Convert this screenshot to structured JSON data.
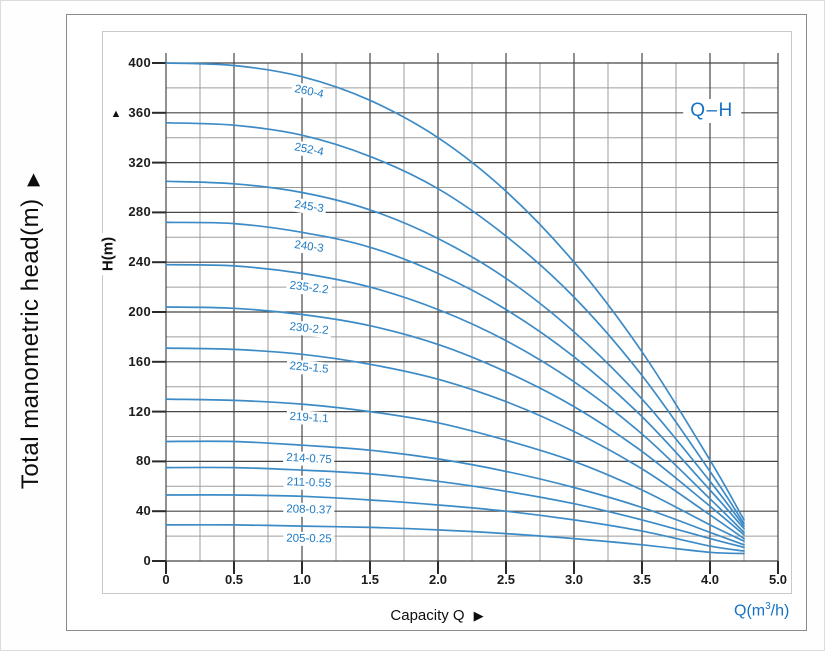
{
  "labels": {
    "title": "Q–H",
    "capacity": "Capacity Q",
    "capacity_arrow": "▶",
    "y_inner": "H(m)",
    "y_outer": "Total manometric head(m)",
    "y_outer_arrow": "▶",
    "y_axis_marker": "▲",
    "unit_prefix": "Q(m",
    "unit_sup": "3",
    "unit_suffix": "/h)"
  },
  "colors": {
    "curve": "#3d8bc6",
    "curve_label": "#1e7ac4",
    "title_blue": "#1672c2",
    "grid_major": "#464646",
    "grid_minor": "#9d9d9d",
    "tick": "#2a2a2a",
    "box_border": "#8a8a8a",
    "panel_border": "#c9c9c9"
  },
  "chart_data": {
    "type": "line",
    "title": "Q–H",
    "xlabel": "Capacity Q",
    "x_unit": "Q(m3/h)",
    "ylabel": "H(m)",
    "ylabel_outer": "Total manometric head(m)",
    "x_tick_labels": [
      "0",
      "0.5",
      "1.0",
      "1.5",
      "2.0",
      "2.5",
      "3.0",
      "3.5",
      "4.0",
      "5.0"
    ],
    "y_tick_labels": [
      "400",
      "360",
      "320",
      "280",
      "240",
      "200",
      "160",
      "120",
      "80",
      "40",
      "0"
    ],
    "ylim": [
      0,
      400
    ],
    "grid": "major-and-minor",
    "legend_position": "labels-on-curves",
    "x": [
      0,
      0.5,
      1.0,
      1.5,
      2.0,
      2.5,
      3.0,
      3.5,
      4.0,
      4.25
    ],
    "series": [
      {
        "name": "260-4",
        "values": [
          400,
          398,
          389,
          370,
          340,
          297,
          240,
          168,
          81,
          33
        ]
      },
      {
        "name": "252-4",
        "values": [
          352,
          350,
          342,
          325,
          299,
          261,
          212,
          149,
          72,
          30
        ]
      },
      {
        "name": "245-3",
        "values": [
          305,
          303,
          296,
          282,
          259,
          227,
          184,
          130,
          64,
          28
        ]
      },
      {
        "name": "240-3",
        "values": [
          272,
          271,
          264,
          252,
          231,
          202,
          164,
          116,
          57,
          26
        ]
      },
      {
        "name": "235-2.2",
        "values": [
          238,
          237,
          231,
          220,
          202,
          177,
          144,
          102,
          50,
          23
        ]
      },
      {
        "name": "230-2.2",
        "values": [
          204,
          203,
          198,
          189,
          174,
          152,
          124,
          88,
          44,
          21
        ]
      },
      {
        "name": "225-1.5",
        "values": [
          171,
          170,
          166,
          158,
          146,
          128,
          104,
          74,
          37,
          18
        ]
      },
      {
        "name": "219-1.1",
        "values": [
          130,
          129,
          126,
          120,
          111,
          97,
          80,
          57,
          29,
          16
        ]
      },
      {
        "name": "214-0.75",
        "values": [
          96,
          96,
          93,
          89,
          82,
          72,
          59,
          43,
          23,
          13
        ]
      },
      {
        "name": "211-0.55",
        "values": [
          75,
          75,
          73,
          70,
          64,
          56,
          46,
          33,
          18,
          11
        ]
      },
      {
        "name": "208-0.37",
        "values": [
          53,
          53,
          52,
          49,
          45,
          40,
          33,
          24,
          12,
          8
        ]
      },
      {
        "name": "205-0.25",
        "values": [
          29,
          29,
          28,
          27,
          25,
          22,
          18,
          13,
          7,
          6
        ]
      }
    ]
  }
}
